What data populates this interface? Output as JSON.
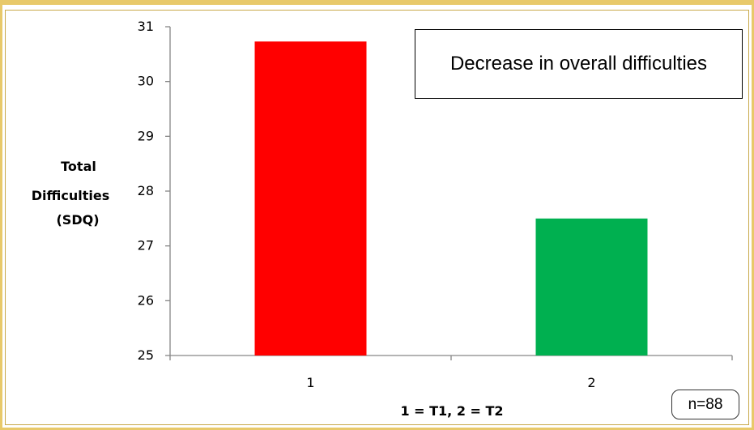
{
  "chart_data": {
    "type": "bar",
    "categories": [
      "1",
      "2"
    ],
    "values": [
      30.73,
      27.5
    ],
    "bar_colors": [
      "#ff0000",
      "#00b050"
    ],
    "ylim": [
      25,
      31
    ],
    "yticks": [
      "25",
      "26",
      "27",
      "28",
      "29",
      "30",
      "31"
    ],
    "ylabel_lines": [
      "Total",
      "Difficulties",
      "(SDQ)"
    ],
    "xlabel": "1 = T1, 2 = T2",
    "annotation": "Decrease in overall difficulties",
    "sample_note": "n=88",
    "grid": false,
    "frame_color": "#e8c96a"
  }
}
